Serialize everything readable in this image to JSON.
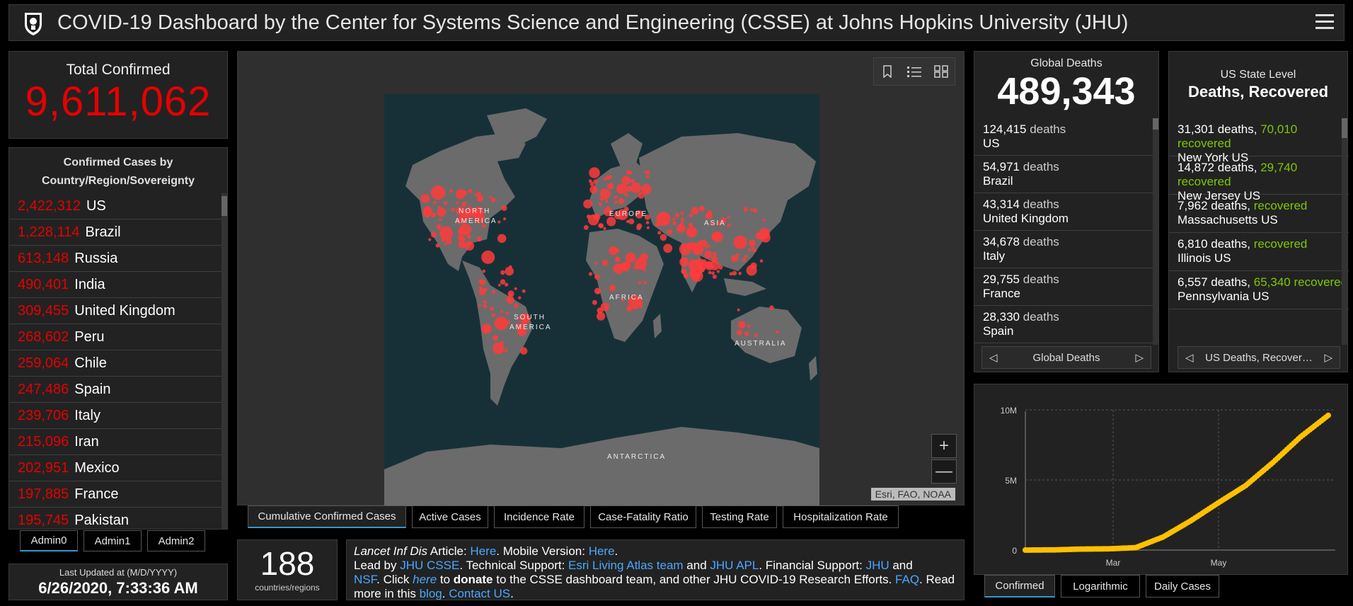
{
  "header": {
    "title": "COVID-19 Dashboard by the Center for Systems Science and Engineering (CSSE) at Johns Hopkins University (JHU)"
  },
  "total": {
    "label": "Total Confirmed",
    "value": "9,611,062"
  },
  "countries": {
    "header_line1": "Confirmed Cases by",
    "header_line2": "Country/Region/Sovereignty",
    "items": [
      {
        "count": "2,422,312",
        "name": "US"
      },
      {
        "count": "1,228,114",
        "name": "Brazil"
      },
      {
        "count": "613,148",
        "name": "Russia"
      },
      {
        "count": "490,401",
        "name": "India"
      },
      {
        "count": "309,455",
        "name": "United Kingdom"
      },
      {
        "count": "268,602",
        "name": "Peru"
      },
      {
        "count": "259,064",
        "name": "Chile"
      },
      {
        "count": "247,486",
        "name": "Spain"
      },
      {
        "count": "239,706",
        "name": "Italy"
      },
      {
        "count": "215,096",
        "name": "Iran"
      },
      {
        "count": "202,951",
        "name": "Mexico"
      },
      {
        "count": "197,885",
        "name": "France"
      },
      {
        "count": "195,745",
        "name": "Pakistan"
      }
    ]
  },
  "admin_tabs": [
    "Admin0",
    "Admin1",
    "Admin2"
  ],
  "updated": {
    "label": "Last Updated at (M/D/YYYY)",
    "value": "6/26/2020, 7:33:36 AM"
  },
  "map": {
    "labels": [
      "NORTH",
      "AMERICA",
      "EUROPE",
      "ASIA",
      "AFRICA",
      "SOUTH",
      "AMERICA",
      "AUSTRALIA",
      "ANTARCTICA"
    ],
    "credit": "Esri, FAO, NOAA",
    "zoom_in": "+",
    "zoom_out": "—",
    "tabs": [
      "Cumulative Confirmed Cases",
      "Active Cases",
      "Incidence Rate",
      "Case-Fatality Ratio",
      "Testing Rate",
      "Hospitalization Rate"
    ]
  },
  "global_deaths": {
    "label": "Global Deaths",
    "value": "489,343",
    "items": [
      {
        "num": "124,415",
        "unit": "deaths",
        "place": "US"
      },
      {
        "num": "54,971",
        "unit": "deaths",
        "place": "Brazil"
      },
      {
        "num": "43,314",
        "unit": "deaths",
        "place": "United Kingdom"
      },
      {
        "num": "34,678",
        "unit": "deaths",
        "place": "Italy"
      },
      {
        "num": "29,755",
        "unit": "deaths",
        "place": "France"
      },
      {
        "num": "28,330",
        "unit": "deaths",
        "place": "Spain"
      }
    ],
    "nav_label": "Global Deaths"
  },
  "us_deaths": {
    "label": "US State Level",
    "title": "Deaths, Recovered",
    "items": [
      {
        "deaths": "31,301 deaths,",
        "recovered_num": "70,010",
        "recovered_word": "recovered",
        "place": "New York US"
      },
      {
        "deaths": "14,872 deaths,",
        "recovered_num": "29,740",
        "recovered_word": "recovered",
        "place": "New Jersey US"
      },
      {
        "deaths": "7,962 deaths,",
        "recovered_num": "",
        "recovered_word": "recovered",
        "place": "Massachusetts US"
      },
      {
        "deaths": "6,810 deaths,",
        "recovered_num": "",
        "recovered_word": "recovered",
        "place": "Illinois US"
      },
      {
        "deaths": "6,557 deaths,",
        "recovered_num": "65,340",
        "recovered_word": "recovered",
        "place": "Pennsylvania US"
      }
    ],
    "nav_label": "US Deaths, Recover…"
  },
  "chart_tabs": [
    "Confirmed",
    "Logarithmic",
    "Daily Cases"
  ],
  "chart_data": {
    "type": "scatter",
    "title": "",
    "xlabel": "",
    "ylabel": "",
    "x_ticks": [
      "Mar",
      "May"
    ],
    "y_ticks": [
      "10M",
      "5M",
      "0"
    ],
    "ylim": [
      0,
      10000000
    ],
    "series": [
      {
        "x": [
          "Jan 22",
          "Feb 1",
          "Feb 15",
          "Mar 1",
          "Mar 15",
          "Apr 1",
          "Apr 15",
          "May 1",
          "May 15",
          "Jun 1",
          "Jun 15",
          "Jun 25"
        ],
        "values": [
          555,
          12000,
          69000,
          88000,
          170000,
          930000,
          2080000,
          3360000,
          4600000,
          6260000,
          8080000,
          9610000
        ]
      }
    ],
    "color": "#ffc000"
  },
  "count": {
    "value": "188",
    "label": "countries/regions"
  },
  "info": {
    "l1_a": "Lancet Inf Dis",
    "l1_b": " Article: ",
    "l1_c": "Here",
    "l1_d": ". Mobile Version: ",
    "l1_e": "Here",
    "l1_f": ".",
    "l2_a": "Lead by ",
    "l2_b": "JHU CSSE",
    "l2_c": ". Technical Support: ",
    "l2_d": "Esri Living Atlas team",
    "l2_e": " and ",
    "l2_f": "JHU APL",
    "l2_g": ". Financial Support: ",
    "l2_h": "JHU",
    "l2_i": " and",
    "l3_a": "NSF",
    "l3_b": ". Click ",
    "l3_c": "here",
    "l3_d": " to ",
    "l3_e": "donate",
    "l3_f": " to the CSSE dashboard team, and other JHU COVID-19 Research Efforts. ",
    "l3_g": "FAQ",
    "l3_h": ". Read",
    "l4_a": "more in this ",
    "l4_b": "blog",
    "l4_c": ". ",
    "l4_d": "Contact US",
    "l4_e": "."
  },
  "colors": {
    "accent_red": "#e60000",
    "recovered_green": "#7ec800",
    "link_blue": "#4aa8ff",
    "series_yellow": "#ffc000"
  }
}
